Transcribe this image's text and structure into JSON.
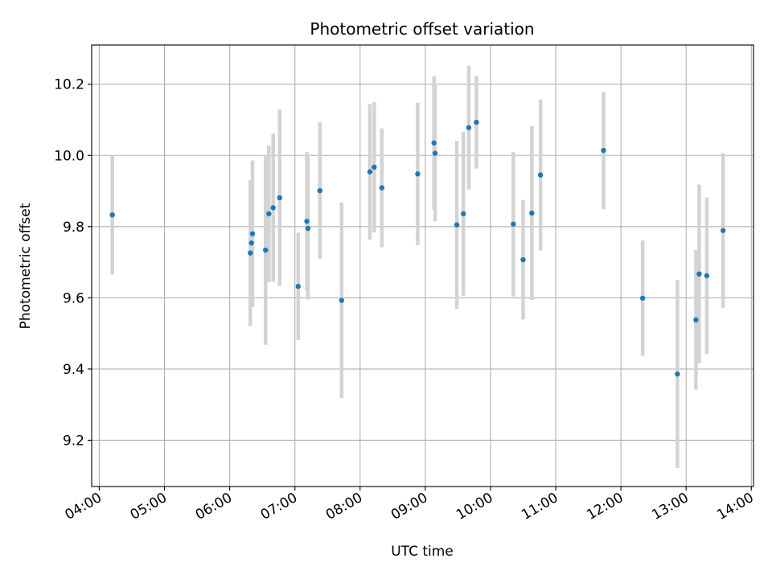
{
  "chart_data": {
    "type": "scatter",
    "title": "Photometric offset variation",
    "xlabel": "UTC time",
    "ylabel": "Photometric offset",
    "xlim": [
      "03:53",
      "14:02"
    ],
    "ylim": [
      9.07,
      10.31
    ],
    "x_ticks": [
      "04:00",
      "05:00",
      "06:00",
      "07:00",
      "08:00",
      "09:00",
      "10:00",
      "11:00",
      "12:00",
      "13:00",
      "14:00"
    ],
    "y_ticks": [
      9.2,
      9.4,
      9.6,
      9.8,
      10.0,
      10.2
    ],
    "grid": true,
    "marker_color": "#1f77b4",
    "errorbar_color": "#d3d3d3",
    "series": [
      {
        "points": [
          {
            "x": "04:12",
            "y": 9.833,
            "err": 0.167
          },
          {
            "x": "06:19",
            "y": 9.726,
            "err": 0.205
          },
          {
            "x": "06:20",
            "y": 9.754,
            "err": 0.176
          },
          {
            "x": "06:21",
            "y": 9.78,
            "err": 0.206
          },
          {
            "x": "06:33",
            "y": 9.734,
            "err": 0.266
          },
          {
            "x": "06:36",
            "y": 9.836,
            "err": 0.192
          },
          {
            "x": "06:40",
            "y": 9.853,
            "err": 0.208
          },
          {
            "x": "06:46",
            "y": 9.881,
            "err": 0.248
          },
          {
            "x": "07:03",
            "y": 9.632,
            "err": 0.151
          },
          {
            "x": "07:11",
            "y": 9.815,
            "err": 0.194
          },
          {
            "x": "07:12",
            "y": 9.795,
            "err": 0.2
          },
          {
            "x": "07:23",
            "y": 9.901,
            "err": 0.192
          },
          {
            "x": "07:43",
            "y": 9.593,
            "err": 0.275
          },
          {
            "x": "08:09",
            "y": 9.954,
            "err": 0.19
          },
          {
            "x": "08:13",
            "y": 9.967,
            "err": 0.183
          },
          {
            "x": "08:20",
            "y": 9.909,
            "err": 0.167
          },
          {
            "x": "08:53",
            "y": 9.948,
            "err": 0.2
          },
          {
            "x": "09:08",
            "y": 10.035,
            "err": 0.187
          },
          {
            "x": "09:09",
            "y": 10.006,
            "err": 0.191
          },
          {
            "x": "09:29",
            "y": 9.805,
            "err": 0.236
          },
          {
            "x": "09:35",
            "y": 9.836,
            "err": 0.23
          },
          {
            "x": "09:40",
            "y": 10.078,
            "err": 0.174
          },
          {
            "x": "09:47",
            "y": 10.093,
            "err": 0.13
          },
          {
            "x": "10:21",
            "y": 9.807,
            "err": 0.203
          },
          {
            "x": "10:30",
            "y": 9.707,
            "err": 0.168
          },
          {
            "x": "10:38",
            "y": 9.838,
            "err": 0.244
          },
          {
            "x": "10:46",
            "y": 9.945,
            "err": 0.212
          },
          {
            "x": "11:44",
            "y": 10.014,
            "err": 0.165
          },
          {
            "x": "12:20",
            "y": 9.599,
            "err": 0.162
          },
          {
            "x": "12:52",
            "y": 9.386,
            "err": 0.264
          },
          {
            "x": "13:09",
            "y": 9.538,
            "err": 0.196
          },
          {
            "x": "13:12",
            "y": 9.667,
            "err": 0.251
          },
          {
            "x": "13:19",
            "y": 9.662,
            "err": 0.22
          },
          {
            "x": "13:34",
            "y": 9.789,
            "err": 0.217
          }
        ]
      }
    ]
  }
}
